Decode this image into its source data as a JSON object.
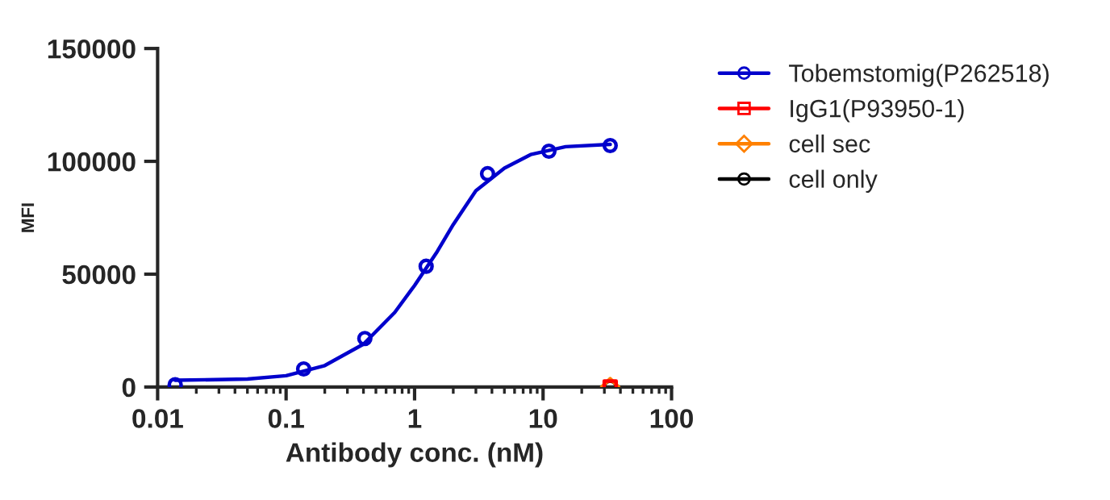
{
  "chart_data": {
    "type": "scatter",
    "xlabel": "Antibody conc. (nM)",
    "ylabel": "MFI",
    "log": "x",
    "xlim": [
      0.01,
      100
    ],
    "xticks": [
      {
        "value": 0.01,
        "label": "0.01"
      },
      {
        "value": 0.1,
        "label": "0.1"
      },
      {
        "value": 1,
        "label": "1"
      },
      {
        "value": 10,
        "label": "10"
      },
      {
        "value": 100,
        "label": "100"
      }
    ],
    "ylim": [
      0,
      150000
    ],
    "yticks": [
      0,
      50000,
      100000,
      150000
    ],
    "grid": false,
    "legend": "right",
    "series": [
      {
        "name": "Tobemstomig(P262518)",
        "color": "#0000cc",
        "marker": "circle",
        "x": [
          0.0137,
          0.137,
          0.41,
          1.23,
          3.7,
          11.1,
          33.3
        ],
        "values": [
          1000,
          8000,
          21500,
          53500,
          94500,
          104500,
          107000
        ]
      },
      {
        "type": "line",
        "color": "#0000cc",
        "marker": "none",
        "x": [
          0.0137,
          0.05,
          0.1,
          0.2,
          0.4,
          0.7,
          1,
          1.5,
          2,
          3,
          5,
          8,
          15,
          33.3
        ],
        "values": [
          3000,
          3500,
          5000,
          9500,
          19000,
          33000,
          45000,
          60000,
          72000,
          87000,
          97000,
          103000,
          106500,
          107500
        ]
      },
      {
        "name": "cell only",
        "color": "#000000",
        "marker": "circle",
        "x": [
          33.3
        ],
        "values": [
          0
        ]
      },
      {
        "name": "cell sec",
        "color": "#ff8000",
        "marker": "diamond",
        "x": [
          33.3
        ],
        "values": [
          0
        ]
      },
      {
        "name": "IgG1(P93950-1)",
        "color": "#ff0000",
        "marker": "square",
        "x": [
          33.3
        ],
        "values": [
          0
        ]
      }
    ]
  }
}
